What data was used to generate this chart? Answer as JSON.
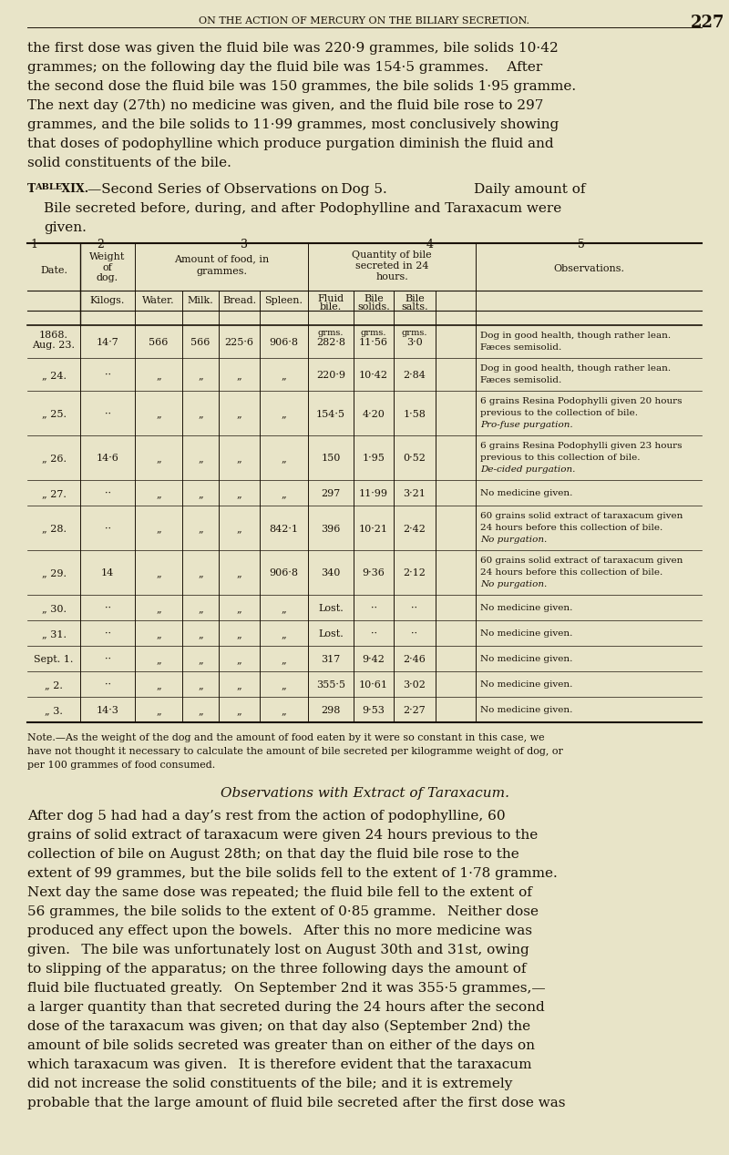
{
  "bg_color": "#e8e4c8",
  "text_color": "#1a1208",
  "header_text": "ON THE ACTION OF MERCURY ON THE BILIARY SECRETION.",
  "page_num": "227",
  "intro_lines": [
    "the first dose was given the fluid bile was 220·9 grammes, bile solids 10·42",
    "grammes; on the following day the fluid bile was 154·5 grammes.  After",
    "the second dose the fluid bile was 150 grammes, the bile solids 1·95 gramme.",
    "The next day (27th) no medicine was given, and the fluid bile rose to 297",
    "grammes, and the bile solids to 11·99 grammes, most conclusively showing",
    "that doses of podophylline which produce purgation diminish the fluid and",
    "solid constituents of the bile."
  ],
  "note_lines": [
    "Note.—As the weight of the dog and the amount of food eaten by it were so constant in this case, we",
    "have not thought it necessary to calculate the amount of bile secreted per kilogramme weight of dog, or",
    "per 100 grammes of food consumed."
  ],
  "section_title": "Observations with Extract of Taraxacum.",
  "closing_lines": [
    "After dog 5 had had a day’s rest from the action of podophylline, 60",
    "grains of solid extract of taraxacum were given 24 hours previous to the",
    "collection of bile on August 28th; on that day the fluid bile rose to the",
    "extent of 99 grammes, but the bile solids fell to the extent of 1·78 gramme.",
    "Next day the same dose was repeated; the fluid bile fell to the extent of",
    "56 grammes, the bile solids to the extent of 0·85 gramme.  Neither dose",
    "produced any effect upon the bowels.  After this no more medicine was",
    "given.  The bile was unfortunately lost on August 30th and 31st, owing",
    "to slipping of the apparatus; on the three following days the amount of",
    "fluid bile fluctuated greatly.  On September 2nd it was 355·5 grammes,—",
    "a larger quantity than that secreted during the 24 hours after the second",
    "dose of the taraxacum was given; on that day also (September 2nd) the",
    "amount of bile solids secreted was greater than on either of the days on",
    "which taraxacum was given.  It is therefore evident that the taraxacum",
    "did not increase the solid constituents of the bile; and it is extremely",
    "probable that the large amount of fluid bile secreted after the first dose was"
  ],
  "rows": [
    {
      "date": "1868.\nAug. 23.",
      "weight": "14·7",
      "water": "566",
      "milk": "566",
      "bread": "225·6",
      "spleen": "906·8",
      "fluid": "grms.\n282·8",
      "solids": "grms.\n11·56",
      "salts": "grms.\n3·0",
      "obs": [
        "Dog in good health, though rather lean.",
        "Fæces semisolid."
      ],
      "obs_italic": []
    },
    {
      "date": "„ 24.",
      "weight": "··",
      "water": "„",
      "milk": "„",
      "bread": "„",
      "spleen": "„",
      "fluid": "220·9",
      "solids": "10·42",
      "salts": "2·84",
      "obs": [
        "Dog in good health, though rather lean.",
        "Fæces semisolid."
      ],
      "obs_italic": []
    },
    {
      "date": "„ 25.",
      "weight": "··",
      "water": "„",
      "milk": "„",
      "bread": "„",
      "spleen": "„",
      "fluid": "154·5",
      "solids": "4·20",
      "salts": "1·58",
      "obs": [
        "6 grains Resina Podophylli given 20 hours",
        "previous to the collection of bile.",
        "Pro-fuse purgation."
      ],
      "obs_italic": [
        2
      ]
    },
    {
      "date": "„ 26.",
      "weight": "14·6",
      "water": "„",
      "milk": "„",
      "bread": "„",
      "spleen": "„",
      "fluid": "150",
      "solids": "1·95",
      "salts": "0·52",
      "obs": [
        "6 grains Resina Podophylli given 23 hours",
        "previous to this collection of bile.",
        "De-cided purgation."
      ],
      "obs_italic": [
        2
      ]
    },
    {
      "date": "„ 27.",
      "weight": "··",
      "water": "„",
      "milk": "„",
      "bread": "„",
      "spleen": "„",
      "fluid": "297",
      "solids": "11·99",
      "salts": "3·21",
      "obs": [
        "No medicine given."
      ],
      "obs_italic": []
    },
    {
      "date": "„ 28.",
      "weight": "··",
      "water": "„",
      "milk": "„",
      "bread": "„",
      "spleen": "842·1",
      "fluid": "396",
      "solids": "10·21",
      "salts": "2·42",
      "obs": [
        "60 grains solid extract of taraxacum given",
        "24 hours before this collection of bile.",
        "No purgation."
      ],
      "obs_italic": [
        2
      ]
    },
    {
      "date": "„ 29.",
      "weight": "14",
      "water": "„",
      "milk": "„",
      "bread": "„",
      "spleen": "906·8",
      "fluid": "340",
      "solids": "9·36",
      "salts": "2·12",
      "obs": [
        "60 grains solid extract of taraxacum given",
        "24 hours before this collection of bile.",
        "No purgation."
      ],
      "obs_italic": [
        2
      ]
    },
    {
      "date": "„ 30.",
      "weight": "··",
      "water": "„",
      "milk": "„",
      "bread": "„",
      "spleen": "„",
      "fluid": "Lost.",
      "solids": "··",
      "salts": "··",
      "obs": [
        "No medicine given."
      ],
      "obs_italic": []
    },
    {
      "date": "„ 31.",
      "weight": "··",
      "water": "„",
      "milk": "„",
      "bread": "„",
      "spleen": "„",
      "fluid": "Lost.",
      "solids": "··",
      "salts": "··",
      "obs": [
        "No medicine given."
      ],
      "obs_italic": []
    },
    {
      "date": "Sept. 1.",
      "weight": "··",
      "water": "„",
      "milk": "„",
      "bread": "„",
      "spleen": "„",
      "fluid": "317",
      "solids": "9·42",
      "salts": "2·46",
      "obs": [
        "No medicine given."
      ],
      "obs_italic": []
    },
    {
      "date": "„ 2.",
      "weight": "··",
      "water": "„",
      "milk": "„",
      "bread": "„",
      "spleen": "„",
      "fluid": "355·5",
      "solids": "10·61",
      "salts": "3·02",
      "obs": [
        "No medicine given."
      ],
      "obs_italic": []
    },
    {
      "date": "„ 3.",
      "weight": "14·3",
      "water": "„",
      "milk": "„",
      "bread": "„",
      "spleen": "„",
      "fluid": "298",
      "solids": "9·53",
      "salts": "2·27",
      "obs": [
        "No medicine given."
      ],
      "obs_italic": []
    }
  ]
}
